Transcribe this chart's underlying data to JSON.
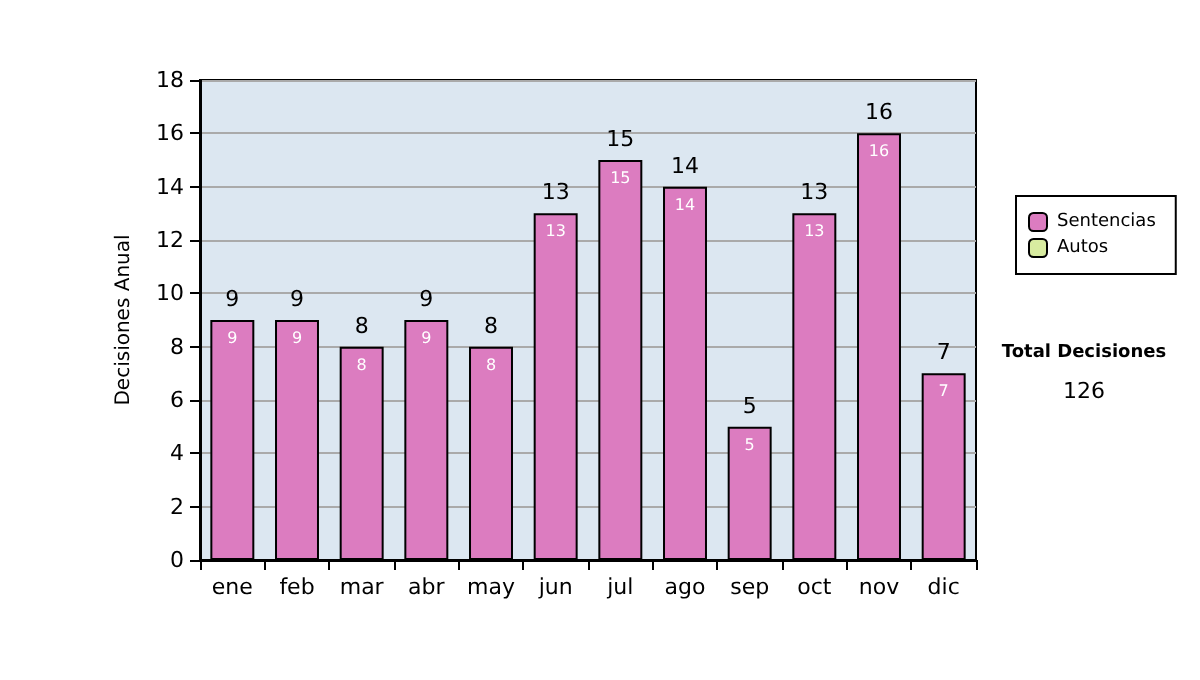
{
  "chart_data": {
    "type": "bar",
    "ylabel": "Decisiones Anual",
    "stacked": true,
    "categories": [
      "ene",
      "feb",
      "mar",
      "abr",
      "may",
      "jun",
      "jul",
      "ago",
      "sep",
      "oct",
      "nov",
      "dic"
    ],
    "series": [
      {
        "name": "Sentencias",
        "color": "#dc7cc0",
        "values": [
          9,
          9,
          8,
          9,
          8,
          13,
          15,
          14,
          5,
          13,
          16,
          7
        ],
        "value_labels": [
          "9",
          "9",
          "8",
          "9",
          "8",
          "13",
          "15",
          "14",
          "5",
          "13",
          "16",
          "7"
        ]
      },
      {
        "name": "Autos",
        "color": "#d8eca0",
        "values": [
          0,
          0,
          0,
          0,
          0,
          0,
          0,
          0,
          0,
          0,
          0,
          0
        ]
      }
    ],
    "totals": [
      "9",
      "9",
      "8",
      "9",
      "8",
      "13",
      "15",
      "14",
      "5",
      "13",
      "16",
      "7"
    ],
    "ylim": [
      0,
      18
    ],
    "yticks": [
      0,
      2,
      4,
      6,
      8,
      10,
      12,
      14,
      16,
      18
    ],
    "grid": "y",
    "legend": "right",
    "annotations": [
      "Total Decisiones",
      "126"
    ]
  }
}
